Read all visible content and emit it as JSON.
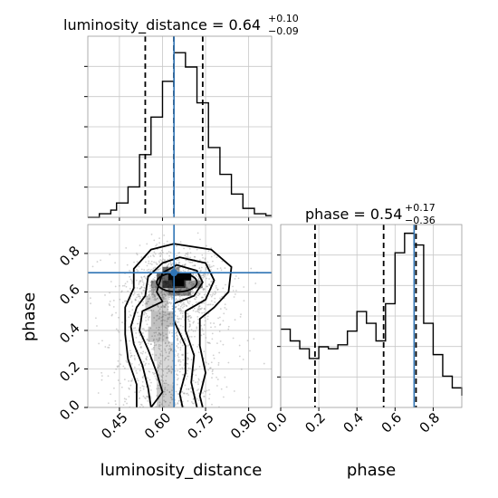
{
  "chart_data": [
    {
      "type": "histogram",
      "panel": "top-left",
      "parameter": "luminosity_distance",
      "title_main": "luminosity_distance = 0.64",
      "title_sup": "+0.10",
      "title_sub": "−0.09",
      "xlim": [
        0.34,
        0.98
      ],
      "grid": true,
      "bins": [
        0.34,
        0.36,
        0.38,
        0.4,
        0.42,
        0.44,
        0.46,
        0.48,
        0.5,
        0.52,
        0.54,
        0.56,
        0.58,
        0.6,
        0.62,
        0.64,
        0.66,
        0.68,
        0.7,
        0.72,
        0.74,
        0.76,
        0.78,
        0.8,
        0.82,
        0.84,
        0.86,
        0.88,
        0.9,
        0.92,
        0.94,
        0.96,
        0.98
      ],
      "counts": [
        0,
        0,
        2,
        2,
        4,
        8,
        8,
        17,
        17,
        35,
        35,
        56,
        56,
        76,
        76,
        92,
        92,
        84,
        84,
        64,
        64,
        39,
        39,
        24,
        24,
        13,
        13,
        5,
        5,
        2,
        2,
        1
      ],
      "quantile_lines": [
        0.54,
        0.74
      ],
      "truth_line": 0.64
    },
    {
      "type": "histogram",
      "panel": "bottom-right",
      "parameter": "phase",
      "title_main": "phase = 0.54",
      "title_sup": "+0.17",
      "title_sub": "−0.36",
      "xlim": [
        0.0,
        0.95
      ],
      "xticks": [
        "0.0",
        "0.2",
        "0.4",
        "0.6",
        "0.8"
      ],
      "xtick_values": [
        0.0,
        0.2,
        0.4,
        0.6,
        0.8
      ],
      "xlabel": "phase",
      "grid": true,
      "bins": [
        0.0,
        0.05,
        0.1,
        0.15,
        0.2,
        0.25,
        0.3,
        0.35,
        0.4,
        0.45,
        0.5,
        0.55,
        0.6,
        0.65,
        0.7,
        0.75,
        0.8,
        0.85,
        0.9,
        0.95
      ],
      "counts": [
        40,
        34,
        30,
        25,
        31,
        30,
        32,
        39,
        49,
        43,
        34,
        53,
        79,
        89,
        83,
        43,
        27,
        16,
        10,
        6
      ],
      "quantile_lines": [
        0.18,
        0.54,
        0.71
      ],
      "truth_line": 0.7
    },
    {
      "type": "contour2d",
      "panel": "bottom-left",
      "x_parameter": "luminosity_distance",
      "y_parameter": "phase",
      "xlim": [
        0.34,
        0.98
      ],
      "ylim": [
        0.0,
        0.95
      ],
      "xticks": [
        "0.45",
        "0.60",
        "0.75",
        "0.90"
      ],
      "xtick_values": [
        0.45,
        0.6,
        0.75,
        0.9
      ],
      "yticks": [
        "0.0",
        "0.2",
        "0.4",
        "0.6",
        "0.8"
      ],
      "ytick_values": [
        0.0,
        0.2,
        0.4,
        0.6,
        0.8
      ],
      "xlabel": "luminosity_distance",
      "ylabel": "phase",
      "truth": [
        0.64,
        0.7
      ],
      "peak": [
        0.65,
        0.65
      ],
      "contours": [
        [
          [
            0.56,
            0.0
          ],
          [
            0.6,
            0.08
          ],
          [
            0.58,
            0.18
          ],
          [
            0.55,
            0.3
          ],
          [
            0.52,
            0.4
          ],
          [
            0.53,
            0.5
          ],
          [
            0.6,
            0.55
          ],
          [
            0.58,
            0.6
          ],
          [
            0.6,
            0.7
          ],
          [
            0.65,
            0.74
          ],
          [
            0.72,
            0.71
          ],
          [
            0.74,
            0.65
          ],
          [
            0.71,
            0.58
          ],
          [
            0.64,
            0.54
          ],
          [
            0.64,
            0.45
          ],
          [
            0.68,
            0.32
          ],
          [
            0.68,
            0.18
          ],
          [
            0.66,
            0.07
          ],
          [
            0.67,
            0.0
          ]
        ],
        [
          [
            0.56,
            0.0
          ],
          [
            0.55,
            0.1
          ],
          [
            0.53,
            0.22
          ],
          [
            0.5,
            0.33
          ],
          [
            0.49,
            0.42
          ],
          [
            0.51,
            0.52
          ],
          [
            0.54,
            0.58
          ],
          [
            0.55,
            0.68
          ],
          [
            0.6,
            0.75
          ],
          [
            0.66,
            0.78
          ],
          [
            0.75,
            0.75
          ],
          [
            0.78,
            0.66
          ],
          [
            0.75,
            0.56
          ],
          [
            0.68,
            0.5
          ],
          [
            0.68,
            0.4
          ],
          [
            0.71,
            0.27
          ],
          [
            0.7,
            0.13
          ],
          [
            0.72,
            0.0
          ]
        ],
        [
          [
            0.51,
            0.0
          ],
          [
            0.51,
            0.12
          ],
          [
            0.48,
            0.25
          ],
          [
            0.47,
            0.38
          ],
          [
            0.47,
            0.52
          ],
          [
            0.5,
            0.62
          ],
          [
            0.5,
            0.72
          ],
          [
            0.56,
            0.82
          ],
          [
            0.64,
            0.85
          ],
          [
            0.77,
            0.82
          ],
          [
            0.84,
            0.73
          ],
          [
            0.83,
            0.6
          ],
          [
            0.78,
            0.52
          ],
          [
            0.73,
            0.46
          ],
          [
            0.73,
            0.32
          ],
          [
            0.75,
            0.18
          ],
          [
            0.73,
            0.06
          ],
          [
            0.74,
            0.0
          ]
        ]
      ]
    }
  ]
}
